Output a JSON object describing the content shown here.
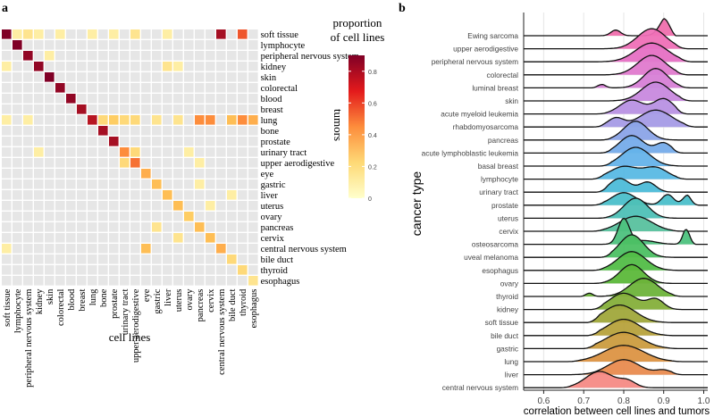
{
  "chart_data": [
    {
      "type": "heatmap",
      "panel_label": "a",
      "xlabel": "cell lines",
      "ylabel": "tumors",
      "legend_title_line1": "proportion",
      "legend_title_line2": "of cell lines",
      "legend_ticks": [
        "0",
        "0.2",
        "0.4",
        "0.6",
        "0.8"
      ],
      "color_range": [
        0,
        0.9
      ],
      "colors": {
        "low": "#ffffcc",
        "mid": "#fd8d3c",
        "high": "#800026",
        "background": "#e6e6e6"
      },
      "categories": [
        "soft tissue",
        "lymphocyte",
        "peripheral nervous system",
        "kidney",
        "skin",
        "colorectal",
        "blood",
        "breast",
        "lung",
        "bone",
        "prostate",
        "urinary tract",
        "upper aerodigestive",
        "eye",
        "gastric",
        "liver",
        "uterus",
        "ovary",
        "pancreas",
        "cervix",
        "central nervous system",
        "bile duct",
        "thyroid",
        "esophagus"
      ],
      "approx_values": [
        {
          "tumor": 0,
          "cell_line": 0,
          "value": 0.9
        },
        {
          "tumor": 0,
          "cell_line": 1,
          "value": 0.1
        },
        {
          "tumor": 0,
          "cell_line": 2,
          "value": 0.15
        },
        {
          "tumor": 0,
          "cell_line": 3,
          "value": 0.1
        },
        {
          "tumor": 0,
          "cell_line": 5,
          "value": 0.1
        },
        {
          "tumor": 0,
          "cell_line": 8,
          "value": 0.1
        },
        {
          "tumor": 0,
          "cell_line": 10,
          "value": 0.1
        },
        {
          "tumor": 0,
          "cell_line": 12,
          "value": 0.15
        },
        {
          "tumor": 0,
          "cell_line": 15,
          "value": 0.1
        },
        {
          "tumor": 0,
          "cell_line": 20,
          "value": 0.8
        },
        {
          "tumor": 0,
          "cell_line": 22,
          "value": 0.55
        },
        {
          "tumor": 1,
          "cell_line": 1,
          "value": 0.9
        },
        {
          "tumor": 2,
          "cell_line": 2,
          "value": 0.85
        },
        {
          "tumor": 2,
          "cell_line": 4,
          "value": 0.1
        },
        {
          "tumor": 3,
          "cell_line": 0,
          "value": 0.1
        },
        {
          "tumor": 3,
          "cell_line": 3,
          "value": 0.85
        },
        {
          "tumor": 3,
          "cell_line": 15,
          "value": 0.15
        },
        {
          "tumor": 3,
          "cell_line": 16,
          "value": 0.1
        },
        {
          "tumor": 4,
          "cell_line": 4,
          "value": 0.9
        },
        {
          "tumor": 5,
          "cell_line": 5,
          "value": 0.85
        },
        {
          "tumor": 6,
          "cell_line": 6,
          "value": 0.85
        },
        {
          "tumor": 7,
          "cell_line": 7,
          "value": 0.8
        },
        {
          "tumor": 8,
          "cell_line": 0,
          "value": 0.1
        },
        {
          "tumor": 8,
          "cell_line": 2,
          "value": 0.1
        },
        {
          "tumor": 8,
          "cell_line": 8,
          "value": 0.75
        },
        {
          "tumor": 8,
          "cell_line": 9,
          "value": 0.2
        },
        {
          "tumor": 8,
          "cell_line": 10,
          "value": 0.25
        },
        {
          "tumor": 8,
          "cell_line": 11,
          "value": 0.2
        },
        {
          "tumor": 8,
          "cell_line": 12,
          "value": 0.2
        },
        {
          "tumor": 8,
          "cell_line": 14,
          "value": 0.15
        },
        {
          "tumor": 8,
          "cell_line": 16,
          "value": 0.15
        },
        {
          "tumor": 8,
          "cell_line": 18,
          "value": 0.45
        },
        {
          "tumor": 8,
          "cell_line": 19,
          "value": 0.45
        },
        {
          "tumor": 8,
          "cell_line": 21,
          "value": 0.3
        },
        {
          "tumor": 8,
          "cell_line": 22,
          "value": 0.45
        },
        {
          "tumor": 8,
          "cell_line": 23,
          "value": 0.35
        },
        {
          "tumor": 9,
          "cell_line": 9,
          "value": 0.8
        },
        {
          "tumor": 10,
          "cell_line": 10,
          "value": 0.8
        },
        {
          "tumor": 11,
          "cell_line": 3,
          "value": 0.1
        },
        {
          "tumor": 11,
          "cell_line": 11,
          "value": 0.45
        },
        {
          "tumor": 11,
          "cell_line": 12,
          "value": 0.2
        },
        {
          "tumor": 11,
          "cell_line": 17,
          "value": 0.1
        },
        {
          "tumor": 12,
          "cell_line": 11,
          "value": 0.2
        },
        {
          "tumor": 12,
          "cell_line": 12,
          "value": 0.5
        },
        {
          "tumor": 12,
          "cell_line": 18,
          "value": 0.1
        },
        {
          "tumor": 13,
          "cell_line": 13,
          "value": 0.35
        },
        {
          "tumor": 14,
          "cell_line": 14,
          "value": 0.3
        },
        {
          "tumor": 14,
          "cell_line": 18,
          "value": 0.1
        },
        {
          "tumor": 15,
          "cell_line": 15,
          "value": 0.3
        },
        {
          "tumor": 15,
          "cell_line": 21,
          "value": 0.1
        },
        {
          "tumor": 16,
          "cell_line": 16,
          "value": 0.3
        },
        {
          "tumor": 16,
          "cell_line": 19,
          "value": 0.1
        },
        {
          "tumor": 17,
          "cell_line": 17,
          "value": 0.25
        },
        {
          "tumor": 18,
          "cell_line": 14,
          "value": 0.15
        },
        {
          "tumor": 18,
          "cell_line": 18,
          "value": 0.3
        },
        {
          "tumor": 19,
          "cell_line": 16,
          "value": 0.15
        },
        {
          "tumor": 19,
          "cell_line": 19,
          "value": 0.3
        },
        {
          "tumor": 20,
          "cell_line": 0,
          "value": 0.1
        },
        {
          "tumor": 20,
          "cell_line": 13,
          "value": 0.3
        },
        {
          "tumor": 20,
          "cell_line": 20,
          "value": 0.35
        },
        {
          "tumor": 21,
          "cell_line": 21,
          "value": 0.2
        },
        {
          "tumor": 22,
          "cell_line": 22,
          "value": 0.2
        },
        {
          "tumor": 23,
          "cell_line": 23,
          "value": 0.15
        }
      ]
    },
    {
      "type": "ridgeline",
      "panel_label": "b",
      "xlabel": "correlation between cell lines and tumors",
      "ylabel": "cancer type",
      "xlim": [
        0.55,
        1.01
      ],
      "x_ticks": [
        "0.6",
        "0.7",
        "0.8",
        "0.9",
        "1.0"
      ],
      "x_tick_values": [
        0.6,
        0.7,
        0.8,
        0.9,
        1.0
      ],
      "series": [
        {
          "name": "Ewing sarcoma",
          "color": "#f06fad",
          "range": [
            0.72,
            0.93
          ],
          "peaks": [
            [
              0.78,
              0.012,
              0.45
            ],
            [
              0.91,
              0.018,
              1.6
            ]
          ]
        },
        {
          "name": "upper aerodigestive",
          "color": "#ef70b7",
          "range": [
            0.73,
            0.96
          ],
          "peaks": [
            [
              0.87,
              0.035,
              1.6
            ]
          ]
        },
        {
          "name": "peripheral nervous system",
          "color": "#e670c4",
          "range": [
            0.72,
            0.97
          ],
          "peaks": [
            [
              0.87,
              0.04,
              1.5
            ]
          ]
        },
        {
          "name": "colorectal",
          "color": "#e07ace",
          "range": [
            0.74,
            0.96
          ],
          "peaks": [
            [
              0.87,
              0.035,
              1.55
            ]
          ]
        },
        {
          "name": "luminal breast",
          "color": "#d77fd6",
          "range": [
            0.72,
            0.97
          ],
          "peaks": [
            [
              0.74,
              0.012,
              0.35
            ],
            [
              0.88,
              0.03,
              1.55
            ]
          ]
        },
        {
          "name": "skin",
          "color": "#c889de",
          "range": [
            0.75,
            0.97
          ],
          "peaks": [
            [
              0.88,
              0.035,
              1.5
            ]
          ]
        },
        {
          "name": "acute myeloid leukemia",
          "color": "#b891e3",
          "range": [
            0.73,
            0.96
          ],
          "peaks": [
            [
              0.82,
              0.03,
              1.1
            ],
            [
              0.9,
              0.025,
              1.2
            ]
          ]
        },
        {
          "name": "rhabdomyosarcoma",
          "color": "#a59be6",
          "range": [
            0.72,
            0.98
          ],
          "peaks": [
            [
              0.78,
              0.02,
              0.7
            ],
            [
              0.88,
              0.04,
              1.35
            ]
          ]
        },
        {
          "name": "pancreas",
          "color": "#8ba4e8",
          "range": [
            0.74,
            0.96
          ],
          "peaks": [
            [
              0.83,
              0.03,
              1.5
            ]
          ]
        },
        {
          "name": "acute lymphoblastic leukemia",
          "color": "#76acea",
          "range": [
            0.74,
            0.95
          ],
          "peaks": [
            [
              0.82,
              0.03,
              1.4
            ],
            [
              0.9,
              0.02,
              0.8
            ]
          ]
        },
        {
          "name": "basal breast",
          "color": "#65b3ea",
          "range": [
            0.74,
            0.96
          ],
          "peaks": [
            [
              0.83,
              0.035,
              1.5
            ]
          ]
        },
        {
          "name": "lymphocyte",
          "color": "#58b9e4",
          "range": [
            0.72,
            0.96
          ],
          "peaks": [
            [
              0.8,
              0.035,
              1.0
            ],
            [
              0.88,
              0.03,
              0.9
            ]
          ]
        },
        {
          "name": "urinary tract",
          "color": "#4dbcd8",
          "range": [
            0.73,
            0.98
          ],
          "peaks": [
            [
              0.79,
              0.025,
              1.1
            ],
            [
              0.86,
              0.02,
              0.8
            ]
          ]
        },
        {
          "name": "prostate",
          "color": "#4bbfca",
          "range": [
            0.72,
            0.99
          ],
          "peaks": [
            [
              0.8,
              0.03,
              1.0
            ],
            [
              0.91,
              0.015,
              0.85
            ],
            [
              0.96,
              0.012,
              0.8
            ]
          ]
        },
        {
          "name": "uterus",
          "color": "#4ec0b6",
          "range": [
            0.73,
            0.95
          ],
          "peaks": [
            [
              0.83,
              0.03,
              1.6
            ]
          ]
        },
        {
          "name": "cervix",
          "color": "#58c19e",
          "range": [
            0.72,
            0.95
          ],
          "peaks": [
            [
              0.83,
              0.04,
              1.2
            ]
          ]
        },
        {
          "name": "osteosarcoma",
          "color": "#4dc27e",
          "range": [
            0.72,
            0.98
          ],
          "peaks": [
            [
              0.8,
              0.014,
              2.0
            ],
            [
              0.96,
              0.01,
              1.6
            ],
            [
              0.85,
              0.03,
              0.3
            ]
          ]
        },
        {
          "name": "uveal melanoma",
          "color": "#4cc063",
          "range": [
            0.74,
            0.95
          ],
          "peaks": [
            [
              0.82,
              0.03,
              1.8
            ]
          ]
        },
        {
          "name": "esophagus",
          "color": "#52bd47",
          "range": [
            0.72,
            0.95
          ],
          "peaks": [
            [
              0.82,
              0.035,
              1.5
            ]
          ]
        },
        {
          "name": "ovary",
          "color": "#5cb83a",
          "range": [
            0.72,
            0.94
          ],
          "peaks": [
            [
              0.82,
              0.03,
              1.5
            ]
          ]
        },
        {
          "name": "thyroid",
          "color": "#6db33a",
          "range": [
            0.69,
            0.95
          ],
          "peaks": [
            [
              0.71,
              0.01,
              0.35
            ],
            [
              0.85,
              0.035,
              1.45
            ]
          ]
        },
        {
          "name": "kidney",
          "color": "#85af3a",
          "range": [
            0.72,
            0.96
          ],
          "peaks": [
            [
              0.8,
              0.035,
              1.3
            ],
            [
              0.88,
              0.02,
              0.8
            ]
          ]
        },
        {
          "name": "soft tissue",
          "color": "#a0a83b",
          "range": [
            0.71,
            0.93
          ],
          "peaks": [
            [
              0.79,
              0.04,
              1.4
            ]
          ]
        },
        {
          "name": "bile duct",
          "color": "#b7a23c",
          "range": [
            0.71,
            0.93
          ],
          "peaks": [
            [
              0.8,
              0.04,
              1.3
            ]
          ]
        },
        {
          "name": "gastric",
          "color": "#cb9c3f",
          "range": [
            0.7,
            0.94
          ],
          "peaks": [
            [
              0.8,
              0.045,
              1.3
            ]
          ]
        },
        {
          "name": "lung",
          "color": "#dc9443",
          "range": [
            0.66,
            0.95
          ],
          "peaks": [
            [
              0.8,
              0.05,
              1.3
            ]
          ]
        },
        {
          "name": "liver",
          "color": "#e98b4f",
          "range": [
            0.65,
            0.95
          ],
          "peaks": [
            [
              0.8,
              0.04,
              1.2
            ],
            [
              0.9,
              0.02,
              0.35
            ]
          ]
        },
        {
          "name": "central nervous system",
          "color": "#f58a85",
          "range": [
            0.64,
            0.9
          ],
          "peaks": [
            [
              0.74,
              0.035,
              1.3
            ],
            [
              0.81,
              0.02,
              0.5
            ]
          ]
        }
      ]
    }
  ]
}
